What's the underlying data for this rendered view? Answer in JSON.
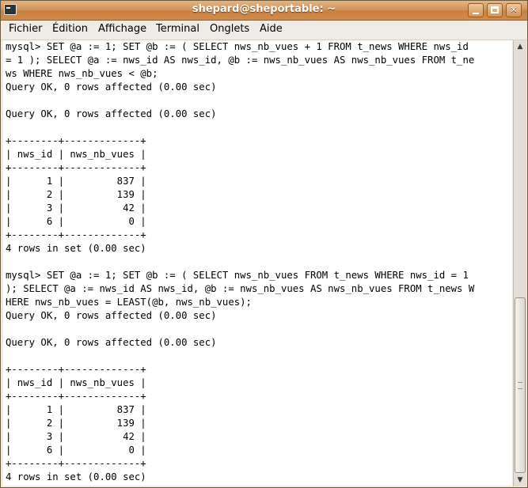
{
  "window": {
    "title": "shepard@sheportable: ~"
  },
  "titlebar_buttons": {
    "minimize": "minimize",
    "maximize": "maximize",
    "close": "✕"
  },
  "menubar": {
    "items": [
      {
        "label": "Fichier"
      },
      {
        "label": "Édition"
      },
      {
        "label": "Affichage"
      },
      {
        "label": "Terminal"
      },
      {
        "label": "Onglets"
      },
      {
        "label": "Aide"
      }
    ]
  },
  "terminal": {
    "lines": [
      "mysql> SET @a := 1; SET @b := ( SELECT nws_nb_vues + 1 FROM t_news WHERE nws_id",
      "= 1 ); SELECT @a := nws_id AS nws_id, @b := nws_nb_vues AS nws_nb_vues FROM t_ne",
      "ws WHERE nws_nb_vues < @b;",
      "Query OK, 0 rows affected (0.00 sec)",
      "",
      "Query OK, 0 rows affected (0.00 sec)",
      "",
      "+--------+-------------+",
      "| nws_id | nws_nb_vues |",
      "+--------+-------------+",
      "|      1 |         837 |",
      "|      2 |         139 |",
      "|      3 |          42 |",
      "|      6 |           0 |",
      "+--------+-------------+",
      "4 rows in set (0.00 sec)",
      "",
      "mysql> SET @a := 1; SET @b := ( SELECT nws_nb_vues FROM t_news WHERE nws_id = 1",
      "); SELECT @a := nws_id AS nws_id, @b := nws_nb_vues AS nws_nb_vues FROM t_news W",
      "HERE nws_nb_vues = LEAST(@b, nws_nb_vues);",
      "Query OK, 0 rows affected (0.00 sec)",
      "",
      "Query OK, 0 rows affected (0.00 sec)",
      "",
      "+--------+-------------+",
      "| nws_id | nws_nb_vues |",
      "+--------+-------------+",
      "|      1 |         837 |",
      "|      2 |         139 |",
      "|      3 |          42 |",
      "|      6 |           0 |",
      "+--------+-------------+",
      "4 rows in set (0.00 sec)"
    ]
  },
  "scrollbar": {
    "up_glyph": "▲",
    "down_glyph": "▼"
  }
}
